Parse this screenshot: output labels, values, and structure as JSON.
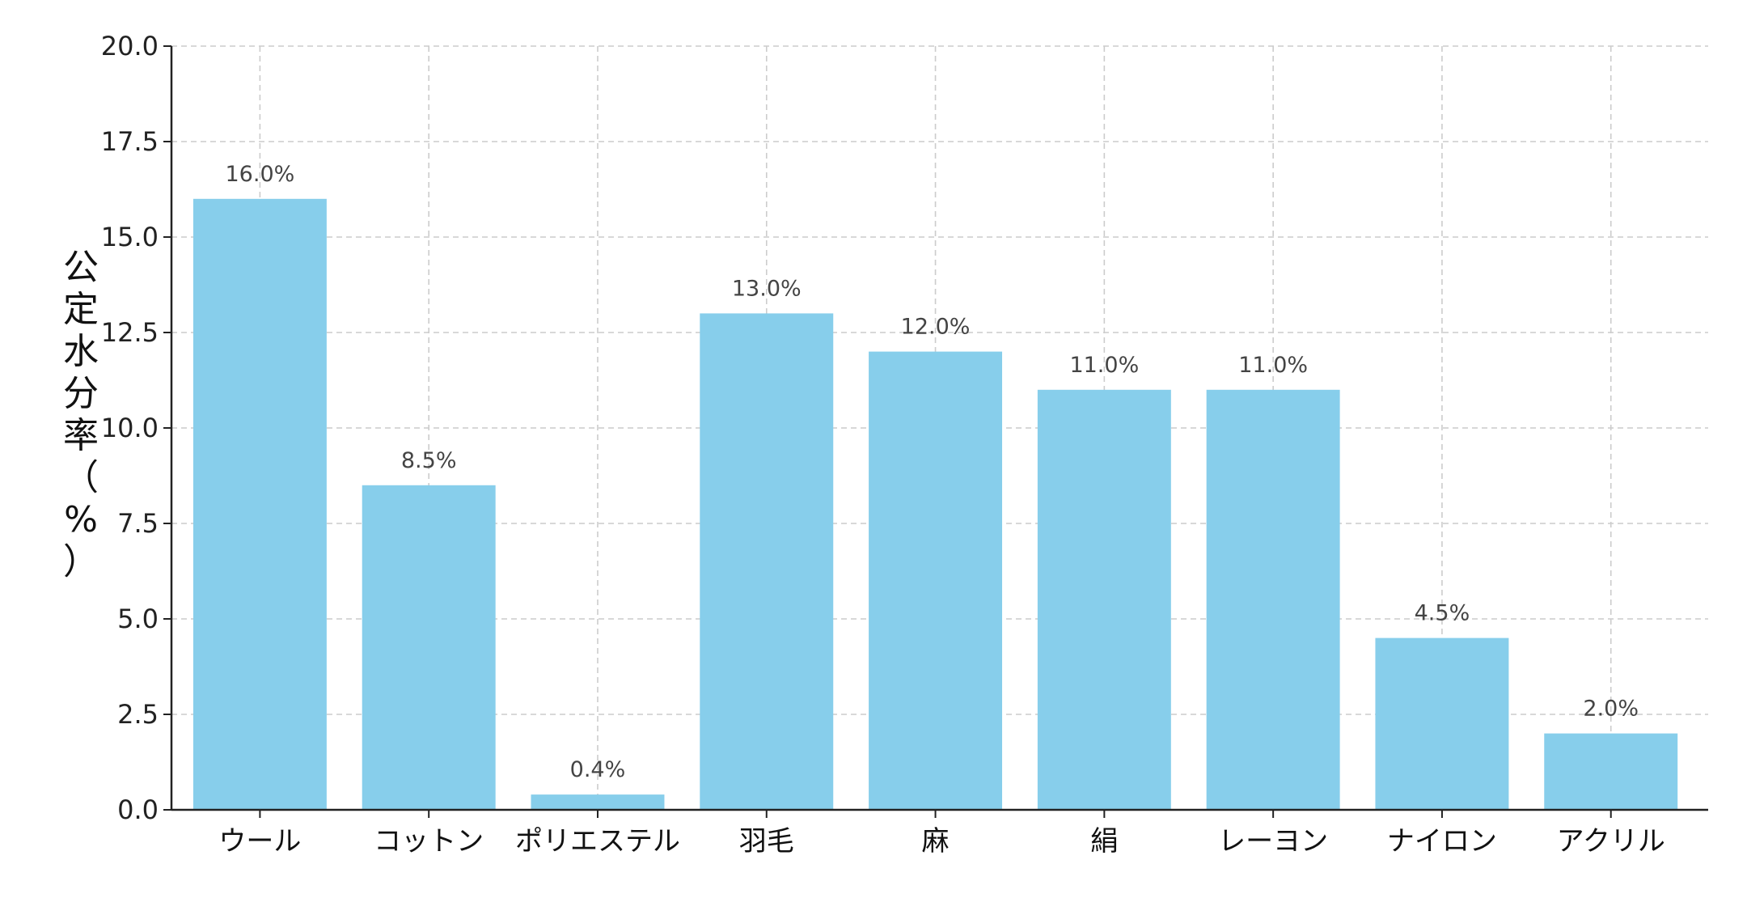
{
  "chart_data": {
    "type": "bar",
    "title": "",
    "xlabel": "",
    "ylabel": "公定水分率（%）",
    "ylim": [
      0,
      20
    ],
    "yticks": [
      "0.0",
      "2.5",
      "5.0",
      "7.5",
      "10.0",
      "12.5",
      "15.0",
      "17.5",
      "20.0"
    ],
    "categories": [
      "ウール",
      "コットン",
      "ポリエステル",
      "羽毛",
      "麻",
      "絹",
      "レーヨン",
      "ナイロン",
      "アクリル"
    ],
    "values": [
      16.0,
      8.5,
      0.4,
      13.0,
      12.0,
      11.0,
      11.0,
      4.5,
      2.0
    ],
    "data_labels": [
      "16.0%",
      "8.5%",
      "0.4%",
      "13.0%",
      "12.0%",
      "11.0%",
      "11.0%",
      "4.5%",
      "2.0%"
    ],
    "grid": true,
    "legend": "none",
    "colors": {
      "bar": "#87ceeb",
      "grid": "#cccccc",
      "axis": "#222222"
    }
  }
}
